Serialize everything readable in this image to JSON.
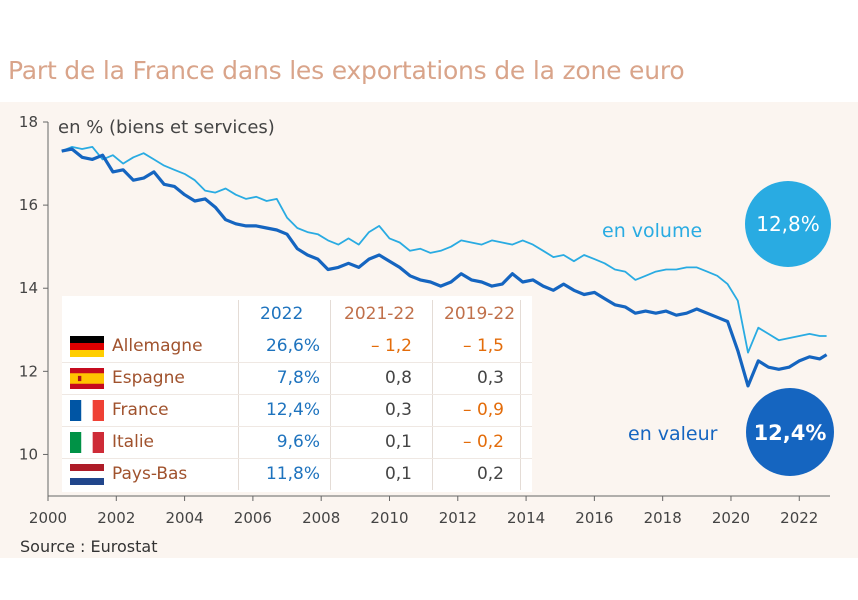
{
  "title": "Part de la France dans les exportations de la zone euro",
  "unit_label": "en % (biens et services)",
  "source": "Source : Eurostat",
  "colors": {
    "volume": "#29abe2",
    "valeur": "#1565c0",
    "negative": "#e36c0a",
    "panel": "#fbf5f0"
  },
  "chart_data": {
    "type": "line",
    "title": "Part de la France dans les exportations de la zone euro",
    "ylabel": "en % (biens et services)",
    "xlim": [
      2000,
      2022.9
    ],
    "ylim": [
      9,
      18
    ],
    "y_ticks": [
      10,
      12,
      14,
      16,
      18
    ],
    "x_ticks": [
      2000,
      2002,
      2004,
      2006,
      2008,
      2010,
      2012,
      2014,
      2016,
      2018,
      2020,
      2022
    ],
    "grid": false,
    "series": [
      {
        "name": "en volume",
        "badge": "12,8%",
        "x": [
          2000.4,
          2000.7,
          2001.0,
          2001.3,
          2001.6,
          2001.9,
          2002.2,
          2002.5,
          2002.8,
          2003.1,
          2003.4,
          2003.7,
          2004.0,
          2004.3,
          2004.6,
          2004.9,
          2005.2,
          2005.5,
          2005.8,
          2006.1,
          2006.4,
          2006.7,
          2007.0,
          2007.3,
          2007.6,
          2007.9,
          2008.2,
          2008.5,
          2008.8,
          2009.1,
          2009.4,
          2009.7,
          2010.0,
          2010.3,
          2010.6,
          2010.9,
          2011.2,
          2011.5,
          2011.8,
          2012.1,
          2012.4,
          2012.7,
          2013.0,
          2013.3,
          2013.6,
          2013.9,
          2014.2,
          2014.5,
          2014.8,
          2015.1,
          2015.4,
          2015.7,
          2016.0,
          2016.3,
          2016.6,
          2016.9,
          2017.2,
          2017.5,
          2017.8,
          2018.1,
          2018.4,
          2018.7,
          2019.0,
          2019.3,
          2019.6,
          2019.9,
          2020.2,
          2020.5,
          2020.8,
          2021.1,
          2021.4,
          2021.7,
          2022.0,
          2022.3,
          2022.6,
          2022.8
        ],
        "values": [
          17.3,
          17.4,
          17.35,
          17.4,
          17.1,
          17.2,
          17.0,
          17.15,
          17.25,
          17.1,
          16.95,
          16.85,
          16.75,
          16.6,
          16.35,
          16.3,
          16.4,
          16.25,
          16.15,
          16.2,
          16.1,
          16.15,
          15.7,
          15.45,
          15.35,
          15.3,
          15.15,
          15.05,
          15.2,
          15.05,
          15.35,
          15.5,
          15.2,
          15.1,
          14.9,
          14.95,
          14.85,
          14.9,
          15.0,
          15.15,
          15.1,
          15.05,
          15.15,
          15.1,
          15.05,
          15.15,
          15.05,
          14.9,
          14.75,
          14.8,
          14.65,
          14.8,
          14.7,
          14.6,
          14.45,
          14.4,
          14.2,
          14.3,
          14.4,
          14.45,
          14.45,
          14.5,
          14.5,
          14.4,
          14.3,
          14.1,
          13.7,
          12.45,
          13.05,
          12.9,
          12.75,
          12.8,
          12.85,
          12.9,
          12.85,
          12.85
        ]
      },
      {
        "name": "en valeur",
        "badge": "12,4%",
        "x": [
          2000.4,
          2000.7,
          2001.0,
          2001.3,
          2001.6,
          2001.9,
          2002.2,
          2002.5,
          2002.8,
          2003.1,
          2003.4,
          2003.7,
          2004.0,
          2004.3,
          2004.6,
          2004.9,
          2005.2,
          2005.5,
          2005.8,
          2006.1,
          2006.4,
          2006.7,
          2007.0,
          2007.3,
          2007.6,
          2007.9,
          2008.2,
          2008.5,
          2008.8,
          2009.1,
          2009.4,
          2009.7,
          2010.0,
          2010.3,
          2010.6,
          2010.9,
          2011.2,
          2011.5,
          2011.8,
          2012.1,
          2012.4,
          2012.7,
          2013.0,
          2013.3,
          2013.6,
          2013.9,
          2014.2,
          2014.5,
          2014.8,
          2015.1,
          2015.4,
          2015.7,
          2016.0,
          2016.3,
          2016.6,
          2016.9,
          2017.2,
          2017.5,
          2017.8,
          2018.1,
          2018.4,
          2018.7,
          2019.0,
          2019.3,
          2019.6,
          2019.9,
          2020.2,
          2020.5,
          2020.8,
          2021.1,
          2021.4,
          2021.7,
          2022.0,
          2022.3,
          2022.6,
          2022.8
        ],
        "values": [
          17.3,
          17.35,
          17.15,
          17.1,
          17.2,
          16.8,
          16.85,
          16.6,
          16.65,
          16.8,
          16.5,
          16.45,
          16.25,
          16.1,
          16.15,
          15.95,
          15.65,
          15.55,
          15.5,
          15.5,
          15.45,
          15.4,
          15.3,
          14.95,
          14.8,
          14.7,
          14.45,
          14.5,
          14.6,
          14.5,
          14.7,
          14.8,
          14.65,
          14.5,
          14.3,
          14.2,
          14.15,
          14.05,
          14.15,
          14.35,
          14.2,
          14.15,
          14.05,
          14.1,
          14.35,
          14.15,
          14.2,
          14.05,
          13.95,
          14.1,
          13.95,
          13.85,
          13.9,
          13.75,
          13.6,
          13.55,
          13.4,
          13.45,
          13.4,
          13.45,
          13.35,
          13.4,
          13.5,
          13.4,
          13.3,
          13.2,
          12.5,
          11.65,
          12.25,
          12.1,
          12.05,
          12.1,
          12.25,
          12.35,
          12.3,
          12.4
        ]
      }
    ]
  },
  "table": {
    "headers": [
      "2022",
      "2021-22",
      "2019-22"
    ],
    "rows": [
      {
        "country": "Allemagne",
        "flag": "germany-flag",
        "v2022": "26,6%",
        "v2021_22": "– 1,2",
        "v2019_22": "– 1,5"
      },
      {
        "country": "Espagne",
        "flag": "spain-flag",
        "v2022": "7,8%",
        "v2021_22": "0,8",
        "v2019_22": "0,3"
      },
      {
        "country": "France",
        "flag": "france-flag",
        "v2022": "12,4%",
        "v2021_22": "0,3",
        "v2019_22": "– 0,9"
      },
      {
        "country": "Italie",
        "flag": "italy-flag",
        "v2022": "9,6%",
        "v2021_22": "0,1",
        "v2019_22": "– 0,2"
      },
      {
        "country": "Pays-Bas",
        "flag": "netherlands-flag",
        "v2022": "11,8%",
        "v2021_22": "0,1",
        "v2019_22": "0,2"
      }
    ]
  }
}
